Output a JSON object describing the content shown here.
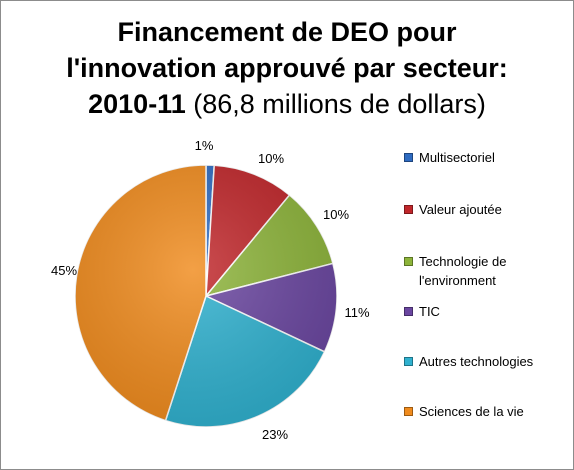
{
  "chart_data": {
    "type": "pie",
    "title_lines": [
      "Financement de DEO pour",
      "l'innovation approuvé par secteur:"
    ],
    "title_year": "2010-11",
    "title_amount": "(86,8 millions de dollars)",
    "slices": [
      {
        "label": "Multisectoriel",
        "value": 1,
        "value_label": "1%",
        "color": "#2e6bc1"
      },
      {
        "label": "Valeur ajoutée",
        "value": 10,
        "value_label": "10%",
        "color": "#c0262a"
      },
      {
        "label": "Technologie de l'environment",
        "value": 10,
        "value_label": "10%",
        "color": "#8db43a"
      },
      {
        "label": "TIC",
        "value": 11,
        "value_label": "11%",
        "color": "#6a46a0"
      },
      {
        "label": "Autres technologies",
        "value": 23,
        "value_label": "23%",
        "color": "#2fb1cf"
      },
      {
        "label": "Sciences de la vie",
        "value": 45,
        "value_label": "45%",
        "color": "#f08b1d"
      }
    ],
    "legend_position": "right",
    "legend": [
      "Multisectoriel",
      "Valeur ajoutée",
      "Technologie de l'environment",
      "TIC",
      "Autres technologies",
      "Sciences de la vie"
    ]
  }
}
